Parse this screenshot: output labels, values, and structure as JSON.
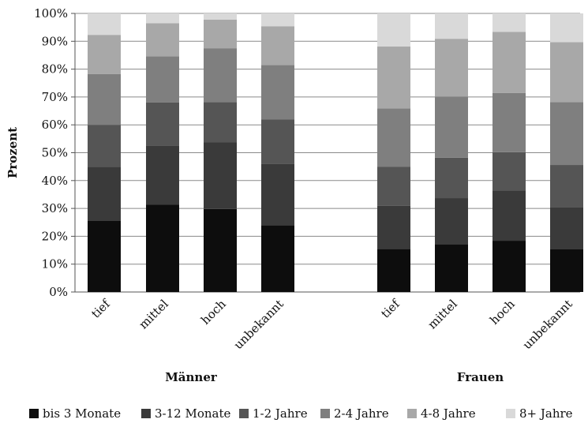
{
  "chart_data": {
    "type": "bar",
    "stacked": true,
    "ylabel": "Prozent",
    "ylim": [
      0,
      100
    ],
    "yticks": [
      "0%",
      "10%",
      "20%",
      "30%",
      "40%",
      "50%",
      "60%",
      "70%",
      "80%",
      "90%",
      "100%"
    ],
    "grid": true,
    "legend_position": "bottom",
    "groups": [
      {
        "label": "Männer",
        "categories": [
          "tief",
          "mittel",
          "hoch",
          "unbekannt"
        ]
      },
      {
        "label": "Frauen",
        "categories": [
          "tief",
          "mittel",
          "hoch",
          "unbekannt"
        ]
      }
    ],
    "series": [
      {
        "name": "bis 3 Monate",
        "color": "#0d0d0d",
        "values": [
          25.5,
          31.3,
          29.8,
          24.0,
          15.5,
          17.2,
          18.4,
          15.3
        ]
      },
      {
        "name": "3-12 Monate",
        "color": "#3a3a3a",
        "values": [
          19.5,
          21.3,
          24.0,
          22.0,
          15.4,
          16.5,
          18.1,
          15.2
        ]
      },
      {
        "name": "1-2 Jahre",
        "color": "#555555",
        "values": [
          15.0,
          15.4,
          14.4,
          16.0,
          14.0,
          14.5,
          13.7,
          15.1
        ]
      },
      {
        "name": "2-4 Jahre",
        "color": "#7f7f7f",
        "values": [
          18.2,
          16.6,
          19.3,
          19.5,
          21.0,
          22.0,
          21.2,
          22.6
        ]
      },
      {
        "name": "4-8 Jahre",
        "color": "#a8a8a8",
        "values": [
          14.1,
          11.9,
          10.3,
          13.9,
          22.2,
          20.7,
          22.0,
          21.5
        ]
      },
      {
        "name": "8+ Jahre",
        "color": "#d9d9d9",
        "values": [
          7.7,
          3.5,
          2.2,
          4.6,
          11.9,
          9.1,
          6.6,
          10.3
        ]
      }
    ]
  }
}
